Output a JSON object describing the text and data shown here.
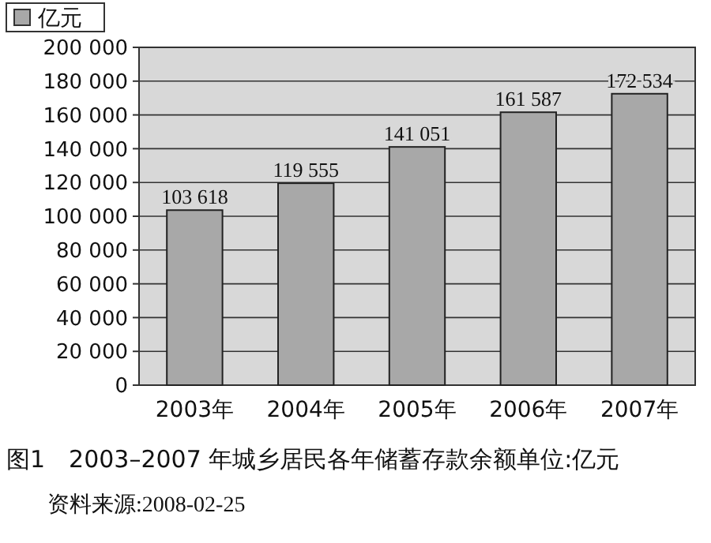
{
  "chart_data": {
    "type": "bar",
    "title": "图1　2003–2007 年城乡居民各年储蓄存款余额单位:亿元",
    "annotations": [
      "资料来源:2008-02-25"
    ],
    "categories": [
      "2003年",
      "2004年",
      "2005年",
      "2006年",
      "2007年"
    ],
    "series": [
      {
        "name": "亿元",
        "color": "#a8a8a8",
        "values": [
          103618,
          119555,
          141051,
          161587,
          172534
        ],
        "value_labels": [
          "103 618",
          "119 555",
          "141 051",
          "161 587",
          "172 534"
        ]
      }
    ],
    "ylim": [
      0,
      200000
    ],
    "yticks": [
      {
        "value": 0,
        "label": "0"
      },
      {
        "value": 20000,
        "label": "20 000"
      },
      {
        "value": 40000,
        "label": "40 000"
      },
      {
        "value": 60000,
        "label": "60 000"
      },
      {
        "value": 80000,
        "label": "80 000"
      },
      {
        "value": 100000,
        "label": "100 000"
      },
      {
        "value": 120000,
        "label": "120 000"
      },
      {
        "value": 140000,
        "label": "140 000"
      },
      {
        "value": 160000,
        "label": "160 000"
      },
      {
        "value": 180000,
        "label": "180 000"
      },
      {
        "value": 200000,
        "label": "200 000"
      }
    ],
    "grid": "y",
    "legend": "top left"
  }
}
